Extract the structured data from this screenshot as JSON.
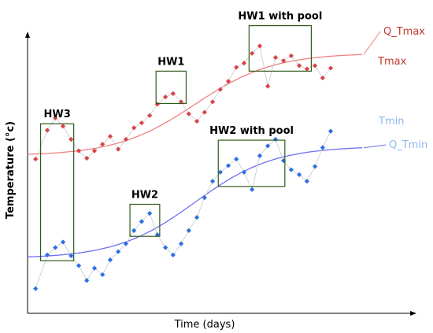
{
  "chart_data": {
    "type": "scatter",
    "xlabel": "Time (days)",
    "ylabel": "Temperature (°c)",
    "xlim": [
      0,
      100
    ],
    "ylim": [
      0,
      100
    ],
    "colors": {
      "tmax_points": "#d9434a",
      "tmax_fit": "#f08080",
      "tmin_points": "#2b6fe6",
      "tmin_fit": "#6f6ff2",
      "tmin_label": "#8fb8ee",
      "tmax_label": "#c0392b",
      "box": "#2f5a1c",
      "connector": "#c8c8c8"
    },
    "series": [
      {
        "name": "Tmax",
        "label_color": "#c0392b",
        "points": [
          {
            "x": 2.4,
            "y": 56.3
          },
          {
            "x": 5.9,
            "y": 66.8
          },
          {
            "x": 8.3,
            "y": 71.3
          },
          {
            "x": 10.6,
            "y": 68.3
          },
          {
            "x": 13.0,
            "y": 63.5
          },
          {
            "x": 15.3,
            "y": 59.3
          },
          {
            "x": 17.7,
            "y": 56.6
          },
          {
            "x": 20.0,
            "y": 59.3
          },
          {
            "x": 22.4,
            "y": 61.7
          },
          {
            "x": 24.7,
            "y": 64.6
          },
          {
            "x": 27.1,
            "y": 59.9
          },
          {
            "x": 29.4,
            "y": 63.5
          },
          {
            "x": 31.8,
            "y": 67.7
          },
          {
            "x": 34.1,
            "y": 69.5
          },
          {
            "x": 36.5,
            "y": 72.2
          },
          {
            "x": 38.8,
            "y": 76.3
          },
          {
            "x": 41.2,
            "y": 79.0
          },
          {
            "x": 43.5,
            "y": 80.2
          },
          {
            "x": 45.9,
            "y": 77.2
          },
          {
            "x": 48.2,
            "y": 72.8
          },
          {
            "x": 50.6,
            "y": 70.1
          },
          {
            "x": 52.9,
            "y": 73.4
          },
          {
            "x": 55.3,
            "y": 77.2
          },
          {
            "x": 57.6,
            "y": 81.7
          },
          {
            "x": 60.0,
            "y": 84.7
          },
          {
            "x": 62.4,
            "y": 89.8
          },
          {
            "x": 64.7,
            "y": 91.3
          },
          {
            "x": 67.1,
            "y": 94.9
          },
          {
            "x": 69.4,
            "y": 97.6
          },
          {
            "x": 71.8,
            "y": 82.9
          },
          {
            "x": 74.1,
            "y": 93.4
          },
          {
            "x": 76.5,
            "y": 92.2
          },
          {
            "x": 78.8,
            "y": 94.0
          },
          {
            "x": 81.2,
            "y": 90.4
          },
          {
            "x": 83.5,
            "y": 89.2
          },
          {
            "x": 85.9,
            "y": 90.4
          },
          {
            "x": 88.2,
            "y": 85.9
          },
          {
            "x": 90.6,
            "y": 89.5
          }
        ]
      },
      {
        "name": "Q_Tmax",
        "label_color": "#c0392b",
        "fit": {
          "base": 57.5,
          "amp": 37.5,
          "mid": 50,
          "k": 0.085
        }
      },
      {
        "name": "Tmin",
        "label_color": "#8fb8ee",
        "points": [
          {
            "x": 2.4,
            "y": 9.0
          },
          {
            "x": 5.9,
            "y": 21.3
          },
          {
            "x": 8.3,
            "y": 24.0
          },
          {
            "x": 10.6,
            "y": 26.0
          },
          {
            "x": 13.0,
            "y": 21.0
          },
          {
            "x": 15.3,
            "y": 17.4
          },
          {
            "x": 17.7,
            "y": 12.0
          },
          {
            "x": 20.0,
            "y": 16.5
          },
          {
            "x": 22.4,
            "y": 14.1
          },
          {
            "x": 24.7,
            "y": 19.5
          },
          {
            "x": 27.1,
            "y": 22.5
          },
          {
            "x": 29.4,
            "y": 25.4
          },
          {
            "x": 31.8,
            "y": 30.2
          },
          {
            "x": 34.1,
            "y": 33.5
          },
          {
            "x": 36.5,
            "y": 36.5
          },
          {
            "x": 38.8,
            "y": 28.7
          },
          {
            "x": 41.2,
            "y": 24.0
          },
          {
            "x": 43.5,
            "y": 21.3
          },
          {
            "x": 45.9,
            "y": 25.4
          },
          {
            "x": 48.2,
            "y": 30.2
          },
          {
            "x": 50.6,
            "y": 35.0
          },
          {
            "x": 52.9,
            "y": 42.2
          },
          {
            "x": 55.3,
            "y": 48.2
          },
          {
            "x": 57.6,
            "y": 51.5
          },
          {
            "x": 60.0,
            "y": 53.9
          },
          {
            "x": 62.4,
            "y": 56.3
          },
          {
            "x": 64.7,
            "y": 51.5
          },
          {
            "x": 67.1,
            "y": 45.2
          },
          {
            "x": 69.4,
            "y": 57.5
          },
          {
            "x": 71.8,
            "y": 61.1
          },
          {
            "x": 74.1,
            "y": 63.5
          },
          {
            "x": 76.5,
            "y": 55.7
          },
          {
            "x": 78.8,
            "y": 52.4
          },
          {
            "x": 81.2,
            "y": 50.6
          },
          {
            "x": 83.5,
            "y": 48.2
          },
          {
            "x": 85.9,
            "y": 53.6
          },
          {
            "x": 88.2,
            "y": 60.5
          },
          {
            "x": 90.6,
            "y": 66.5
          }
        ]
      },
      {
        "name": "Q_Tmin",
        "label_color": "#8fb8ee",
        "fit": {
          "base": 20.0,
          "amp": 41.0,
          "mid": 50,
          "k": 0.085
        }
      }
    ],
    "annotations": [
      {
        "label": "HW3",
        "x0": 3.9,
        "x1": 13.8,
        "y0": 19.2,
        "y1": 69.2
      },
      {
        "label": "HW2",
        "x0": 30.6,
        "x1": 39.5,
        "y0": 28.1,
        "y1": 39.8
      },
      {
        "label": "HW1",
        "x0": 38.4,
        "x1": 47.4,
        "y0": 76.6,
        "y1": 88.4
      },
      {
        "label": "HW2 with pool",
        "x0": 57.0,
        "x1": 76.9,
        "y0": 46.3,
        "y1": 63.2
      },
      {
        "label": "HW1 with pool",
        "x0": 66.2,
        "x1": 84.8,
        "y0": 88.4,
        "y1": 105.0
      }
    ]
  }
}
